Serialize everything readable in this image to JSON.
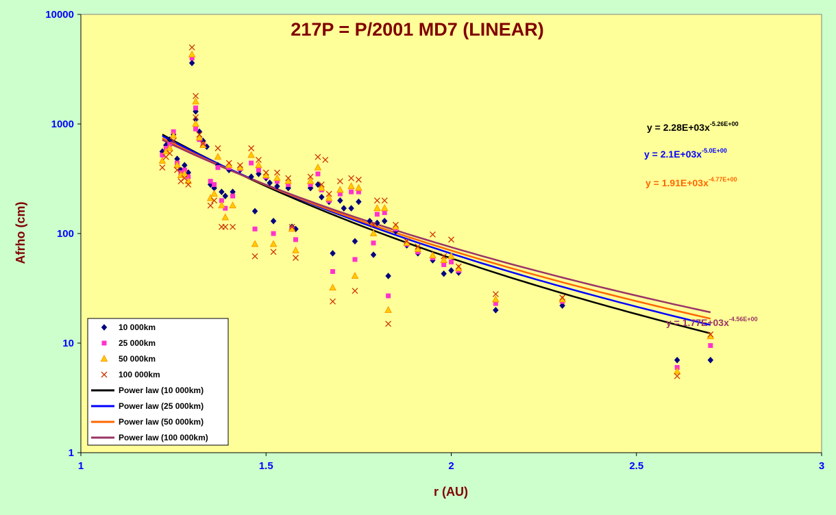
{
  "chart_data": {
    "type": "scatter",
    "title": "217P = P/2001 MD7 (LINEAR)",
    "xlabel": "r (AU)",
    "ylabel": "Afrho (cm)",
    "xlim": [
      1,
      3
    ],
    "ylim": [
      1,
      10000
    ],
    "yscale": "log",
    "x_ticks": [
      "1",
      "1.5",
      "2",
      "2.5",
      "3"
    ],
    "y_ticks": [
      "1",
      "10",
      "100",
      "1000",
      "10000"
    ],
    "grid": false,
    "legend_position": "bottom-left",
    "colors": {
      "page_bg": "#ccffcc",
      "plot_bg": "#ffff99",
      "title": "#800000",
      "ticks": "#0000ff"
    },
    "series": [
      {
        "name": "10 000km",
        "marker": "diamond",
        "color": "#000080",
        "points": [
          [
            1.22,
            560
          ],
          [
            1.23,
            640
          ],
          [
            1.24,
            720
          ],
          [
            1.25,
            800
          ],
          [
            1.26,
            480
          ],
          [
            1.27,
            380
          ],
          [
            1.28,
            420
          ],
          [
            1.29,
            360
          ],
          [
            1.3,
            3600
          ],
          [
            1.31,
            1300
          ],
          [
            1.31,
            1100
          ],
          [
            1.32,
            850
          ],
          [
            1.33,
            700
          ],
          [
            1.34,
            620
          ],
          [
            1.35,
            280
          ],
          [
            1.36,
            260
          ],
          [
            1.37,
            420
          ],
          [
            1.38,
            240
          ],
          [
            1.39,
            220
          ],
          [
            1.4,
            380
          ],
          [
            1.41,
            240
          ],
          [
            1.43,
            380
          ],
          [
            1.46,
            330
          ],
          [
            1.47,
            160
          ],
          [
            1.48,
            350
          ],
          [
            1.5,
            320
          ],
          [
            1.51,
            290
          ],
          [
            1.52,
            130
          ],
          [
            1.53,
            270
          ],
          [
            1.56,
            260
          ],
          [
            1.57,
            115
          ],
          [
            1.58,
            110
          ],
          [
            1.62,
            260
          ],
          [
            1.64,
            280
          ],
          [
            1.65,
            215
          ],
          [
            1.67,
            195
          ],
          [
            1.68,
            66
          ],
          [
            1.7,
            200
          ],
          [
            1.71,
            170
          ],
          [
            1.73,
            170
          ],
          [
            1.74,
            85
          ],
          [
            1.75,
            195
          ],
          [
            1.78,
            130
          ],
          [
            1.79,
            64
          ],
          [
            1.8,
            125
          ],
          [
            1.82,
            130
          ],
          [
            1.83,
            41
          ],
          [
            1.85,
            105
          ],
          [
            1.88,
            78
          ],
          [
            1.91,
            66
          ],
          [
            1.95,
            57
          ],
          [
            1.98,
            43
          ],
          [
            2.0,
            46
          ],
          [
            2.02,
            44
          ],
          [
            2.12,
            20
          ],
          [
            2.3,
            22
          ],
          [
            2.61,
            7
          ],
          [
            2.7,
            7
          ]
        ]
      },
      {
        "name": "25 000km",
        "marker": "square",
        "color": "#ff33cc",
        "points": [
          [
            1.22,
            520
          ],
          [
            1.23,
            600
          ],
          [
            1.24,
            650
          ],
          [
            1.25,
            850
          ],
          [
            1.26,
            440
          ],
          [
            1.27,
            360
          ],
          [
            1.28,
            380
          ],
          [
            1.29,
            330
          ],
          [
            1.3,
            4000
          ],
          [
            1.31,
            1400
          ],
          [
            1.31,
            900
          ],
          [
            1.32,
            720
          ],
          [
            1.33,
            650
          ],
          [
            1.35,
            300
          ],
          [
            1.36,
            280
          ],
          [
            1.37,
            400
          ],
          [
            1.38,
            200
          ],
          [
            1.39,
            170
          ],
          [
            1.4,
            400
          ],
          [
            1.41,
            220
          ],
          [
            1.43,
            390
          ],
          [
            1.46,
            440
          ],
          [
            1.47,
            110
          ],
          [
            1.48,
            380
          ],
          [
            1.5,
            330
          ],
          [
            1.52,
            100
          ],
          [
            1.53,
            300
          ],
          [
            1.56,
            280
          ],
          [
            1.57,
            110
          ],
          [
            1.58,
            88
          ],
          [
            1.62,
            280
          ],
          [
            1.64,
            350
          ],
          [
            1.65,
            250
          ],
          [
            1.67,
            200
          ],
          [
            1.68,
            45
          ],
          [
            1.7,
            230
          ],
          [
            1.73,
            240
          ],
          [
            1.74,
            58
          ],
          [
            1.75,
            240
          ],
          [
            1.79,
            82
          ],
          [
            1.8,
            150
          ],
          [
            1.82,
            155
          ],
          [
            1.83,
            27
          ],
          [
            1.85,
            110
          ],
          [
            1.88,
            80
          ],
          [
            1.91,
            68
          ],
          [
            1.95,
            60
          ],
          [
            1.98,
            52
          ],
          [
            2.0,
            55
          ],
          [
            2.02,
            46
          ],
          [
            2.12,
            23
          ],
          [
            2.3,
            24
          ],
          [
            2.61,
            6
          ],
          [
            2.7,
            9.5
          ]
        ]
      },
      {
        "name": "50 000km",
        "marker": "triangle",
        "color": "#ff9900",
        "points": [
          [
            1.22,
            460
          ],
          [
            1.23,
            560
          ],
          [
            1.24,
            600
          ],
          [
            1.25,
            780
          ],
          [
            1.26,
            420
          ],
          [
            1.27,
            340
          ],
          [
            1.28,
            350
          ],
          [
            1.29,
            300
          ],
          [
            1.3,
            4300
          ],
          [
            1.31,
            1600
          ],
          [
            1.31,
            1000
          ],
          [
            1.32,
            750
          ],
          [
            1.33,
            640
          ],
          [
            1.35,
            210
          ],
          [
            1.36,
            230
          ],
          [
            1.37,
            500
          ],
          [
            1.38,
            180
          ],
          [
            1.39,
            140
          ],
          [
            1.4,
            420
          ],
          [
            1.41,
            180
          ],
          [
            1.43,
            400
          ],
          [
            1.46,
            520
          ],
          [
            1.47,
            80
          ],
          [
            1.48,
            420
          ],
          [
            1.5,
            340
          ],
          [
            1.52,
            80
          ],
          [
            1.53,
            320
          ],
          [
            1.56,
            300
          ],
          [
            1.57,
            110
          ],
          [
            1.58,
            70
          ],
          [
            1.62,
            300
          ],
          [
            1.64,
            400
          ],
          [
            1.65,
            260
          ],
          [
            1.67,
            210
          ],
          [
            1.68,
            32
          ],
          [
            1.7,
            250
          ],
          [
            1.73,
            270
          ],
          [
            1.74,
            41
          ],
          [
            1.75,
            260
          ],
          [
            1.79,
            100
          ],
          [
            1.8,
            170
          ],
          [
            1.82,
            170
          ],
          [
            1.83,
            20
          ],
          [
            1.85,
            115
          ],
          [
            1.88,
            82
          ],
          [
            1.91,
            72
          ],
          [
            1.95,
            63
          ],
          [
            1.98,
            57
          ],
          [
            2.0,
            62
          ],
          [
            2.02,
            48
          ],
          [
            2.12,
            25
          ],
          [
            2.3,
            25
          ],
          [
            2.61,
            5.5
          ],
          [
            2.7,
            11.5
          ]
        ]
      },
      {
        "name": "100 000km",
        "marker": "x",
        "color": "#cc3300",
        "points": [
          [
            1.22,
            400
          ],
          [
            1.23,
            500
          ],
          [
            1.24,
            540
          ],
          [
            1.25,
            700
          ],
          [
            1.26,
            380
          ],
          [
            1.27,
            300
          ],
          [
            1.28,
            320
          ],
          [
            1.29,
            280
          ],
          [
            1.3,
            5000
          ],
          [
            1.31,
            1800
          ],
          [
            1.31,
            1150
          ],
          [
            1.32,
            800
          ],
          [
            1.33,
            660
          ],
          [
            1.35,
            180
          ],
          [
            1.36,
            200
          ],
          [
            1.37,
            600
          ],
          [
            1.38,
            115
          ],
          [
            1.39,
            115
          ],
          [
            1.4,
            440
          ],
          [
            1.41,
            115
          ],
          [
            1.43,
            420
          ],
          [
            1.46,
            600
          ],
          [
            1.47,
            62
          ],
          [
            1.48,
            470
          ],
          [
            1.5,
            360
          ],
          [
            1.52,
            68
          ],
          [
            1.53,
            360
          ],
          [
            1.56,
            320
          ],
          [
            1.57,
            115
          ],
          [
            1.58,
            60
          ],
          [
            1.62,
            330
          ],
          [
            1.64,
            500
          ],
          [
            1.65,
            280
          ],
          [
            1.66,
            470
          ],
          [
            1.67,
            230
          ],
          [
            1.68,
            24
          ],
          [
            1.7,
            300
          ],
          [
            1.73,
            320
          ],
          [
            1.74,
            30
          ],
          [
            1.75,
            310
          ],
          [
            1.79,
            120
          ],
          [
            1.8,
            200
          ],
          [
            1.82,
            200
          ],
          [
            1.83,
            15
          ],
          [
            1.85,
            120
          ],
          [
            1.88,
            85
          ],
          [
            1.91,
            76
          ],
          [
            1.95,
            98
          ],
          [
            1.98,
            62
          ],
          [
            2.0,
            88
          ],
          [
            2.02,
            50
          ],
          [
            2.12,
            28
          ],
          [
            2.3,
            26
          ],
          [
            2.61,
            5
          ],
          [
            2.7,
            12
          ]
        ]
      }
    ],
    "trendlines": [
      {
        "name": "Power law (10 000km)",
        "color": "#000000",
        "a": 2280,
        "b": -5.26,
        "x_range": [
          1.22,
          2.7
        ],
        "equation": "y = 2.28E+03x",
        "exponent": "-5.26E+00"
      },
      {
        "name": "Power law (25 000km)",
        "color": "#0000ff",
        "a": 2100,
        "b": -5.0,
        "x_range": [
          1.22,
          2.7
        ],
        "equation": "y = 2.1E+03x",
        "exponent": "-5.0E+00"
      },
      {
        "name": "Power law (50 000km)",
        "color": "#ff6600",
        "a": 1910,
        "b": -4.77,
        "x_range": [
          1.22,
          2.7
        ],
        "equation": "y = 1.91E+03x",
        "exponent": "-4.77E+00"
      },
      {
        "name": "Power law (100 000km)",
        "color": "#993366",
        "a": 1770,
        "b": -4.56,
        "x_range": [
          1.22,
          2.7
        ],
        "equation": "y = 1.77E+03x",
        "exponent": "-4.56E+00"
      }
    ]
  }
}
